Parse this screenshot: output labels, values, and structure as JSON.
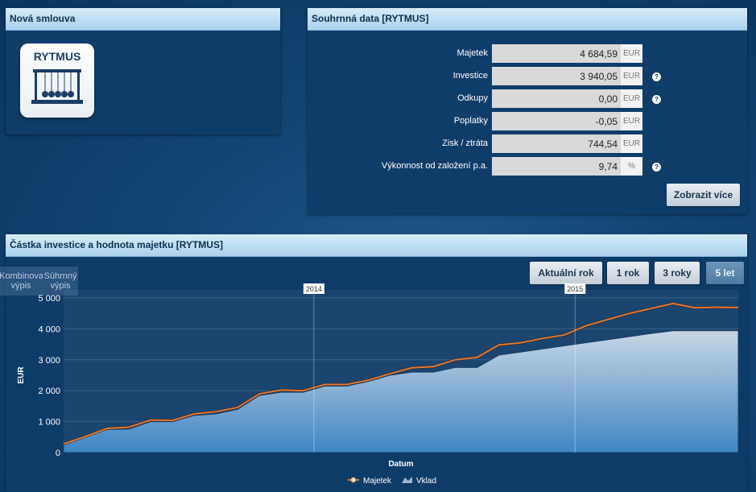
{
  "new_contract": {
    "title": "Nová smlouva",
    "product_label": "RYTMUS"
  },
  "summary": {
    "title": "Souhrnná data [RYTMUS]",
    "rows": [
      {
        "label": "Majetek",
        "value": "4 684,59",
        "unit": "EUR",
        "help": false
      },
      {
        "label": "Investice",
        "value": "3 940,05",
        "unit": "EUR",
        "help": true
      },
      {
        "label": "Odkupy",
        "value": "0,00",
        "unit": "EUR",
        "help": true
      },
      {
        "label": "Poplatky",
        "value": "-0,05",
        "unit": "EUR",
        "help": false
      },
      {
        "label": "Zisk / ztráta",
        "value": "744,54",
        "unit": "EUR",
        "help": false
      },
      {
        "label": "Výkonnost od založení p.a.",
        "value": "9,74",
        "unit": "%",
        "help": true
      }
    ],
    "help_glyph": "?",
    "more_button": "Zobrazit více"
  },
  "chart_panel": {
    "title": "Částka investice a hodnota majetku [RYTMUS]",
    "side_tabs": [
      "Kombinovaný výpis",
      "Súhrnný výpis"
    ],
    "range_buttons": [
      "Aktuální rok",
      "1 rok",
      "3 roky",
      "5 let"
    ],
    "active_range": "5 let"
  },
  "chart_data": {
    "type": "area",
    "xlabel": "Datum",
    "ylabel": "EUR",
    "ylim": [
      0,
      5000
    ],
    "yticks": [
      0,
      1000,
      2000,
      3000,
      4000,
      5000
    ],
    "ytick_labels": [
      "0",
      "1 000",
      "2 000",
      "3 000",
      "4 000",
      "5 000"
    ],
    "year_markers": [
      {
        "label": "2014",
        "x": 11.5
      },
      {
        "label": "2015",
        "x": 23.5
      }
    ],
    "legend_position": "bottom-center",
    "grid": true,
    "series": [
      {
        "name": "Majetek",
        "type": "line",
        "color": "#e8762b",
        "x": [
          0,
          1,
          2,
          3,
          4,
          5,
          6,
          7,
          8,
          9,
          10,
          11,
          12,
          13,
          14,
          15,
          16,
          17,
          18,
          19,
          20,
          21,
          22,
          23,
          24,
          25,
          26,
          27,
          28,
          29,
          30,
          31
        ],
        "values": [
          280,
          520,
          780,
          820,
          1050,
          1040,
          1250,
          1320,
          1460,
          1900,
          2020,
          2000,
          2200,
          2200,
          2340,
          2550,
          2740,
          2780,
          3000,
          3080,
          3480,
          3550,
          3690,
          3800,
          4100,
          4300,
          4500,
          4660,
          4820,
          4680,
          4700,
          4690
        ]
      },
      {
        "name": "Vklad",
        "type": "area",
        "color": "#9fb6cf",
        "x": [
          0,
          1,
          2,
          3,
          4,
          5,
          6,
          7,
          8,
          9,
          10,
          11,
          12,
          13,
          14,
          15,
          16,
          17,
          18,
          19,
          20,
          21,
          22,
          23,
          24,
          25,
          26,
          27,
          28,
          29,
          30,
          31
        ],
        "values": [
          250,
          500,
          750,
          760,
          1000,
          1000,
          1200,
          1250,
          1400,
          1850,
          1950,
          1950,
          2150,
          2150,
          2300,
          2500,
          2600,
          2600,
          2750,
          2750,
          3150,
          3250,
          3350,
          3450,
          3550,
          3650,
          3750,
          3850,
          3940,
          3940,
          3940,
          3940
        ]
      }
    ]
  }
}
